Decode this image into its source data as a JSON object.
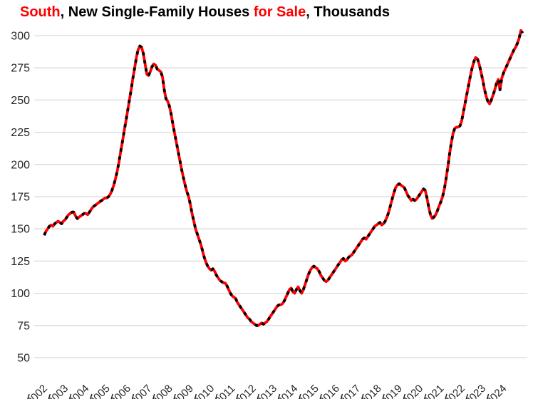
{
  "title": {
    "segments": [
      {
        "text": "South",
        "color": "#FF0000"
      },
      {
        "text": ", New Single-Family Houses ",
        "color": "#000000"
      },
      {
        "text": "for Sale",
        "color": "#FF0000"
      },
      {
        "text": ", Thousands",
        "color": "#000000"
      }
    ]
  },
  "colors": {
    "line_red": "#FF0000",
    "line_dash_overlay": "#000000",
    "gridline": "#d9d9d9",
    "axis_label": "#262626",
    "background": "#ffffff",
    "title_accent": "#FF0000"
  },
  "chart_data": {
    "type": "line",
    "title": "South, New Single-Family Houses for Sale, Thousands",
    "ylabel": "",
    "xlabel": "",
    "units": "Thousands of houses",
    "frequency": "monthly",
    "start": "2002-01",
    "end": "2024-12",
    "ylim": [
      50,
      300
    ],
    "y_ticks": [
      50,
      75,
      100,
      125,
      150,
      175,
      200,
      225,
      250,
      275,
      300
    ],
    "x_tick_labels": [
      "2002",
      "2003",
      "2004",
      "2005",
      "2006",
      "2007",
      "2008",
      "2009",
      "2010",
      "2011",
      "2012",
      "2013",
      "2014",
      "2015",
      "2016",
      "2017",
      "2018",
      "2019",
      "2020",
      "2021",
      "2022",
      "2023",
      "2024"
    ],
    "grid": "horizontal",
    "legend": "none",
    "line_style": "solid red with black dash overlay",
    "series": [
      {
        "name": "New single-family houses for sale, South region",
        "color": "#FF0000",
        "dash_overlay_color": "#000000",
        "values": [
          145,
          148,
          150,
          152,
          153,
          152,
          154,
          155,
          156,
          155,
          154,
          156,
          157,
          159,
          161,
          162,
          163,
          163,
          160,
          158,
          159,
          160,
          161,
          162,
          162,
          161,
          163,
          165,
          167,
          168,
          169,
          170,
          171,
          172,
          173,
          174,
          174,
          175,
          177,
          180,
          184,
          189,
          195,
          202,
          210,
          218,
          226,
          234,
          242,
          250,
          258,
          267,
          275,
          283,
          289,
          292,
          291,
          286,
          278,
          270,
          269,
          272,
          276,
          278,
          277,
          274,
          273,
          272,
          268,
          258,
          251,
          249,
          245,
          239,
          231,
          224,
          217,
          210,
          203,
          196,
          190,
          184,
          179,
          175,
          169,
          162,
          156,
          150,
          146,
          142,
          138,
          133,
          128,
          124,
          121,
          119,
          118,
          119,
          117,
          114,
          112,
          110,
          109,
          108,
          108,
          106,
          103,
          100,
          98,
          97,
          96,
          93,
          91,
          89,
          87,
          85,
          83,
          81,
          80,
          78,
          77,
          76,
          75,
          75,
          76,
          77,
          76,
          77,
          78,
          80,
          82,
          84,
          86,
          88,
          90,
          91,
          91,
          92,
          94,
          97,
          100,
          103,
          104,
          101,
          100,
          103,
          105,
          102,
          100,
          103,
          107,
          111,
          115,
          118,
          120,
          121,
          120,
          119,
          117,
          114,
          112,
          110,
          109,
          110,
          112,
          114,
          116,
          118,
          120,
          122,
          124,
          126,
          127,
          125,
          126,
          128,
          129,
          130,
          132,
          134,
          136,
          138,
          140,
          142,
          143,
          142,
          144,
          146,
          148,
          150,
          152,
          153,
          154,
          155,
          153,
          154,
          156,
          159,
          163,
          168,
          173,
          178,
          182,
          184,
          185,
          184,
          183,
          182,
          179,
          176,
          174,
          172,
          173,
          172,
          173,
          175,
          177,
          179,
          181,
          180,
          174,
          167,
          161,
          158,
          159,
          161,
          164,
          168,
          171,
          175,
          181,
          189,
          198,
          208,
          217,
          224,
          228,
          229,
          229,
          230,
          234,
          241,
          248,
          255,
          262,
          269,
          275,
          280,
          283,
          282,
          278,
          272,
          266,
          259,
          253,
          249,
          247,
          250,
          254,
          258,
          263,
          266,
          258,
          267,
          271,
          274,
          277,
          280,
          283,
          286,
          289,
          291,
          294,
          298,
          304,
          302
        ]
      }
    ]
  }
}
